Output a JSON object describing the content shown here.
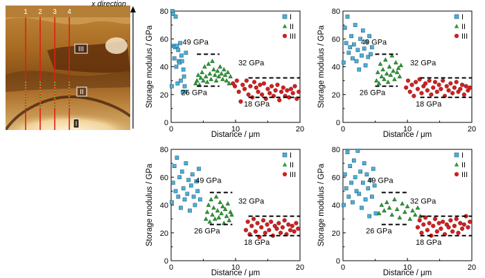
{
  "image": {
    "direction_label": "x direction",
    "line_labels": [
      "1",
      "2",
      "3",
      "4"
    ],
    "region_labels": [
      "III",
      "II",
      "I"
    ],
    "colors": {
      "line": "#e02010",
      "dotted": "#70d040"
    }
  },
  "colors": {
    "I": "#4ab0d8",
    "II": "#2d9a36",
    "III": "#d02020"
  },
  "chart_data": [
    {
      "type": "scatter",
      "xlabel": "Distance / μm",
      "ylabel": "Storage modulus / GPa",
      "xlim": [
        0,
        20
      ],
      "ylim": [
        0,
        80
      ],
      "xticks": [
        "0",
        "10",
        "20"
      ],
      "yticks": [
        "0",
        "20",
        "40",
        "60",
        "80"
      ],
      "legend": "top-right",
      "series": [
        {
          "name": "I",
          "marker": "square",
          "color": "#4ab0d8",
          "x": [
            0.1,
            0.2,
            0.3,
            0.4,
            0.5,
            0.6,
            0.7,
            0.8,
            0.9,
            1.0,
            1.1,
            1.2,
            1.3,
            1.4,
            1.5,
            1.6,
            1.7,
            1.8,
            1.9,
            2.0,
            2.1,
            2.2,
            2.3
          ],
          "y": [
            26,
            80,
            78,
            55,
            46,
            54,
            76,
            40,
            55,
            28,
            52,
            44,
            43,
            57,
            30,
            48,
            44,
            22,
            38,
            33,
            26,
            22,
            50
          ]
        },
        {
          "name": "II",
          "marker": "triangle",
          "color": "#2d9a36",
          "x": [
            3.8,
            4.0,
            4.2,
            4.4,
            4.6,
            4.8,
            5.0,
            5.2,
            5.4,
            5.6,
            5.8,
            6.0,
            6.2,
            6.4,
            6.6,
            6.8,
            7.0,
            7.2,
            7.4,
            7.6,
            7.8,
            8.0,
            8.2,
            8.4,
            8.6,
            8.8,
            9.0,
            9.2
          ],
          "y": [
            28,
            30,
            34,
            27,
            32,
            36,
            30,
            40,
            33,
            29,
            42,
            35,
            31,
            44,
            38,
            34,
            30,
            37,
            33,
            40,
            35,
            31,
            38,
            34,
            30,
            36,
            28,
            33
          ]
        },
        {
          "name": "III",
          "marker": "circle",
          "color": "#d02020",
          "x": [
            9.6,
            9.9,
            10.2,
            10.5,
            10.8,
            11.1,
            11.4,
            11.7,
            12.0,
            12.3,
            12.6,
            12.9,
            13.2,
            13.5,
            13.8,
            14.1,
            14.4,
            14.7,
            15.0,
            15.3,
            15.6,
            15.9,
            16.2,
            16.5,
            16.8,
            17.1,
            17.4,
            17.7,
            18.0,
            18.3,
            18.6,
            18.9,
            19.2,
            19.5,
            19.8
          ],
          "y": [
            28,
            26,
            30,
            22,
            15,
            27,
            24,
            30,
            20,
            26,
            18,
            29,
            25,
            22,
            27,
            20,
            28,
            17,
            24,
            21,
            26,
            19,
            23,
            27,
            16,
            22,
            25,
            19,
            23,
            18,
            24,
            21,
            26,
            17,
            22
          ]
        }
      ],
      "reference_lines": [
        {
          "label": "49 GPa",
          "y": 49,
          "x": [
            4,
            7.5
          ]
        },
        {
          "label": "26 GPa",
          "y": 26,
          "x": [
            4,
            7.5
          ]
        },
        {
          "label": "32 GPa",
          "y": 32,
          "x": [
            12,
            20
          ]
        },
        {
          "label": "18 GPa",
          "y": 18,
          "x": [
            12,
            20
          ]
        }
      ]
    },
    {
      "type": "scatter",
      "xlabel": "Distance / μm",
      "ylabel": "Storage modulus / GPa",
      "xlim": [
        0,
        20
      ],
      "ylim": [
        0,
        80
      ],
      "xticks": [
        "0",
        "10",
        "20"
      ],
      "yticks": [
        "0",
        "20",
        "40",
        "60",
        "80"
      ],
      "legend": "top-right",
      "series": [
        {
          "name": "I",
          "marker": "square",
          "color": "#4ab0d8",
          "x": [
            0.1,
            0.3,
            0.5,
            0.7,
            0.9,
            1.1,
            1.3,
            1.5,
            1.7,
            1.9,
            2.1,
            2.3,
            2.5,
            2.7,
            2.9,
            3.1,
            3.3,
            3.5,
            3.7,
            3.9,
            4.1,
            4.3,
            4.5
          ],
          "y": [
            43,
            68,
            57,
            76,
            50,
            54,
            62,
            46,
            56,
            70,
            44,
            52,
            38,
            60,
            48,
            66,
            53,
            41,
            58,
            47,
            62,
            49,
            54
          ]
        },
        {
          "name": "II",
          "marker": "triangle",
          "color": "#2d9a36",
          "x": [
            5.2,
            5.4,
            5.6,
            5.8,
            6.0,
            6.2,
            6.4,
            6.6,
            6.8,
            7.0,
            7.2,
            7.4,
            7.6,
            7.8,
            8.0,
            8.2,
            8.4,
            8.6,
            8.8,
            9.0
          ],
          "y": [
            30,
            36,
            28,
            42,
            33,
            38,
            31,
            45,
            35,
            29,
            40,
            34,
            48,
            37,
            31,
            43,
            36,
            39,
            33,
            41
          ]
        },
        {
          "name": "III",
          "marker": "circle",
          "color": "#d02020",
          "x": [
            9.8,
            10.1,
            10.4,
            10.7,
            11.0,
            11.3,
            11.6,
            11.9,
            12.2,
            12.5,
            12.8,
            13.1,
            13.4,
            13.7,
            14.0,
            14.3,
            14.6,
            14.9,
            15.2,
            15.5,
            15.8,
            16.1,
            16.4,
            16.7,
            17.0,
            17.3,
            17.6,
            17.9,
            18.2,
            18.5,
            18.8,
            19.1,
            19.4,
            19.7
          ],
          "y": [
            25,
            30,
            22,
            27,
            19,
            29,
            24,
            31,
            21,
            26,
            28,
            23,
            30,
            20,
            25,
            29,
            22,
            27,
            24,
            30,
            19,
            26,
            23,
            28,
            21,
            25,
            29,
            22,
            24,
            27,
            20,
            26,
            23,
            25
          ]
        }
      ],
      "reference_lines": [
        {
          "label": "49 GPa",
          "y": 49,
          "x": [
            5,
            8.5
          ]
        },
        {
          "label": "26 GPa",
          "y": 26,
          "x": [
            5,
            8.5
          ]
        },
        {
          "label": "32 GPa",
          "y": 32,
          "x": [
            12,
            20
          ]
        },
        {
          "label": "18 GPa",
          "y": 18,
          "x": [
            12,
            20
          ]
        }
      ]
    },
    {
      "type": "scatter",
      "xlabel": "Distance / μm",
      "ylabel": "Storage modulus / GPa",
      "xlim": [
        0,
        20
      ],
      "ylim": [
        0,
        80
      ],
      "xticks": [
        "0",
        "10",
        "20"
      ],
      "yticks": [
        "0",
        "20",
        "40",
        "60",
        "80"
      ],
      "legend": "top-right",
      "series": [
        {
          "name": "I",
          "marker": "square",
          "color": "#4ab0d8",
          "x": [
            0.1,
            0.3,
            0.5,
            0.7,
            0.9,
            1.1,
            1.3,
            1.5,
            1.7,
            1.9,
            2.1,
            2.3,
            2.5,
            2.7,
            2.9,
            3.1,
            3.3,
            3.5,
            3.7,
            3.9,
            4.1,
            4.3,
            4.5
          ],
          "y": [
            42,
            56,
            68,
            50,
            74,
            46,
            60,
            38,
            64,
            52,
            44,
            70,
            48,
            58,
            36,
            54,
            62,
            46,
            40,
            57,
            50,
            66,
            44
          ]
        },
        {
          "name": "II",
          "marker": "triangle",
          "color": "#2d9a36",
          "x": [
            5.4,
            5.6,
            5.8,
            6.0,
            6.2,
            6.4,
            6.6,
            6.8,
            7.0,
            7.2,
            7.4,
            7.6,
            7.8,
            8.0,
            8.2,
            8.4,
            8.6,
            8.8,
            9.0,
            9.2,
            9.4
          ],
          "y": [
            30,
            35,
            40,
            28,
            44,
            33,
            38,
            30,
            46,
            36,
            31,
            42,
            34,
            39,
            27,
            37,
            32,
            41,
            29,
            35,
            33
          ]
        },
        {
          "name": "III",
          "marker": "circle",
          "color": "#d02020",
          "x": [
            11.6,
            11.9,
            12.2,
            12.5,
            12.8,
            13.1,
            13.4,
            13.7,
            14.0,
            14.3,
            14.6,
            14.9,
            15.2,
            15.5,
            15.8,
            16.1,
            16.4,
            16.7,
            17.0,
            17.3,
            17.6,
            17.9,
            18.2,
            18.5,
            18.8,
            19.1,
            19.4,
            19.7
          ],
          "y": [
            22,
            28,
            19,
            25,
            30,
            21,
            27,
            17,
            24,
            29,
            20,
            26,
            22,
            28,
            18,
            25,
            23,
            27,
            20,
            24,
            29,
            19,
            26,
            22,
            25,
            21,
            27,
            23
          ]
        }
      ],
      "reference_lines": [
        {
          "label": "49 GPa",
          "y": 49,
          "x": [
            6,
            9.5
          ]
        },
        {
          "label": "26 GPa",
          "y": 26,
          "x": [
            6,
            9.5
          ]
        },
        {
          "label": "32 GPa",
          "y": 32,
          "x": [
            12,
            20
          ]
        },
        {
          "label": "18 GPa",
          "y": 18,
          "x": [
            12,
            20
          ]
        }
      ]
    },
    {
      "type": "scatter",
      "xlabel": "Distance / μm",
      "ylabel": "Storage modulus / GPa",
      "xlim": [
        0,
        20
      ],
      "ylim": [
        0,
        80
      ],
      "xticks": [
        "0",
        "10",
        "20"
      ],
      "yticks": [
        "0",
        "20",
        "40",
        "60",
        "80"
      ],
      "legend": "top-right",
      "series": [
        {
          "name": "I",
          "marker": "square",
          "color": "#4ab0d8",
          "x": [
            0.1,
            0.3,
            0.5,
            0.7,
            0.9,
            1.1,
            1.3,
            1.5,
            1.7,
            1.9,
            2.1,
            2.3,
            2.5,
            2.7,
            2.9,
            3.1,
            3.3,
            3.5,
            3.7,
            3.9,
            4.1,
            4.3,
            4.5,
            4.7,
            4.9,
            5.1
          ],
          "y": [
            40,
            62,
            52,
            78,
            46,
            68,
            56,
            42,
            72,
            60,
            50,
            79,
            48,
            64,
            38,
            56,
            70,
            44,
            62,
            52,
            32,
            58,
            46,
            66,
            54,
            34
          ]
        },
        {
          "name": "II",
          "marker": "triangle",
          "color": "#2d9a36",
          "x": [
            5.6,
            6.0,
            6.4,
            6.8,
            7.2,
            7.6,
            8.0,
            8.4,
            8.8,
            9.2,
            9.6,
            10.0,
            10.4,
            10.8,
            11.2,
            11.6,
            12.0
          ],
          "y": [
            34,
            40,
            36,
            42,
            38,
            33,
            44,
            37,
            31,
            41,
            35,
            39,
            30,
            36,
            33,
            38,
            32
          ]
        },
        {
          "name": "III",
          "marker": "circle",
          "color": "#d02020",
          "x": [
            11.6,
            11.9,
            12.2,
            12.5,
            12.8,
            13.1,
            13.4,
            13.7,
            14.0,
            14.3,
            14.6,
            14.9,
            15.2,
            15.5,
            15.8,
            16.1,
            16.4,
            16.7,
            17.0,
            17.3,
            17.6,
            17.9,
            18.2,
            18.5,
            18.8,
            19.1,
            19.4,
            19.7
          ],
          "y": [
            24,
            29,
            20,
            26,
            31,
            22,
            27,
            18,
            25,
            30,
            21,
            27,
            23,
            28,
            19,
            26,
            24,
            29,
            21,
            25,
            30,
            20,
            27,
            23,
            26,
            32,
            24,
            28
          ]
        }
      ],
      "reference_lines": [
        {
          "label": "49 GPa",
          "y": 49,
          "x": [
            6,
            10
          ]
        },
        {
          "label": "26 GPa",
          "y": 26,
          "x": [
            6,
            10
          ]
        },
        {
          "label": "32 GPa",
          "y": 32,
          "x": [
            12,
            20
          ]
        },
        {
          "label": "18 GPa",
          "y": 18,
          "x": [
            12,
            20
          ]
        }
      ]
    }
  ]
}
